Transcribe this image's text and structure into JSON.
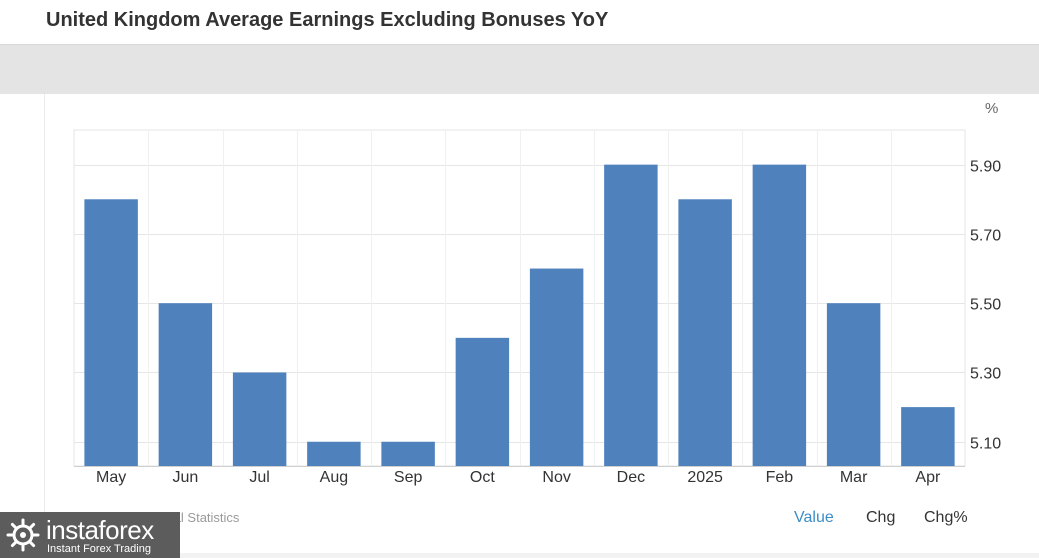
{
  "header": {
    "title": "United Kingdom Average Earnings Excluding Bonuses YoY"
  },
  "footer": {
    "source": "Office for National Statistics",
    "tabs": {
      "value": "Value",
      "chg": "Chg",
      "chg_pct": "Chg%"
    }
  },
  "watermark": {
    "brand": "instaforex",
    "tagline": "Instant Forex Trading"
  },
  "colors": {
    "bar": "#4f81bd",
    "active_tab": "#3c8dc5",
    "grid": "#e6e6e6"
  },
  "chart_data": {
    "type": "bar",
    "title": "United Kingdom Average Earnings Excluding Bonuses YoY",
    "unit": "%",
    "categories": [
      "May",
      "Jun",
      "Jul",
      "Aug",
      "Sep",
      "Oct",
      "Nov",
      "Dec",
      "2025",
      "Feb",
      "Mar",
      "Apr"
    ],
    "values": [
      5.8,
      5.5,
      5.3,
      5.1,
      5.1,
      5.4,
      5.6,
      5.9,
      5.8,
      5.9,
      5.5,
      5.2
    ],
    "y_ticks": [
      "5.10",
      "5.30",
      "5.50",
      "5.70",
      "5.90"
    ],
    "ylim": [
      5.03,
      6.0
    ],
    "grid": true,
    "y_axis_side": "right"
  }
}
